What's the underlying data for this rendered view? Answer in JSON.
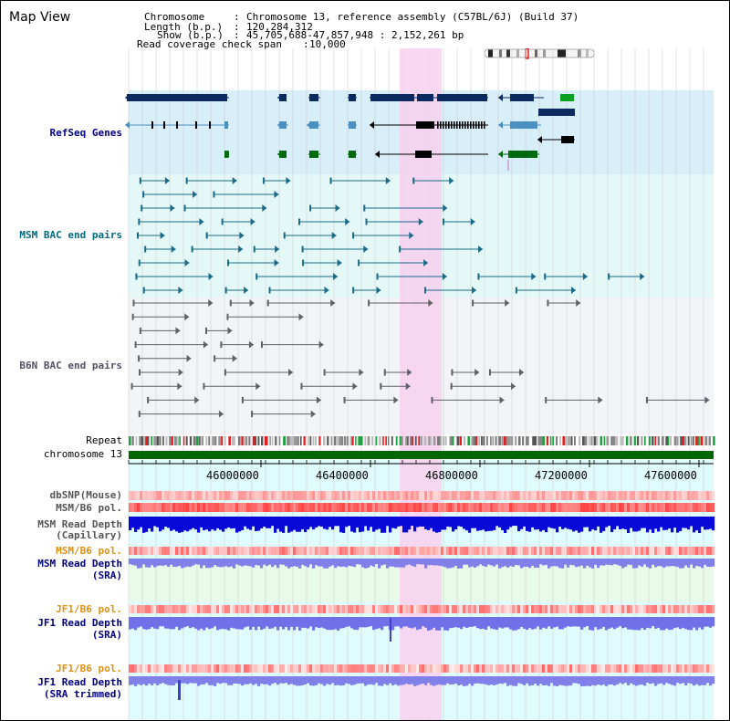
{
  "page": {
    "title": "Map View"
  },
  "header": {
    "chromosome_label": "Chromosome",
    "chromosome_value": "Chromosome 13, reference assembly (C57BL/6J) (Build 37)",
    "length_label": "Length (b.p.)",
    "length_value": "120,284,312",
    "show_label": "Show (b.p.)",
    "show_value": "45,705,688-47,857,948 : 2,152,261 bp",
    "span_label": "Read coverage check span",
    "span_value": "10,000"
  },
  "tracks": {
    "refseq": "RefSeq Genes",
    "msm_bac": "MSM BAC end pairs",
    "b6n_bac": "B6N BAC end pairs",
    "repeat": "Repeat",
    "chromosome": "chromosome 13",
    "dbsnp": "dbSNP(Mouse)",
    "msm_b6_pol": "MSM/B6 pol.",
    "msm_depth_cap_1": "MSM Read Depth",
    "msm_depth_cap_2": "(Capillary)",
    "msm_b6_pol_2": "MSM/B6 pol.",
    "msm_depth_sra_1": "MSM Read Depth",
    "msm_depth_sra_2": "(SRA)",
    "jf1_b6_pol": "JF1/B6 pol.",
    "jf1_depth_sra_1": "JF1 Read Depth",
    "jf1_depth_sra_2": "(SRA)",
    "jf1_b6_pol_2": "JF1/B6 pol.",
    "jf1_depth_trim_1": "JF1 Read Depth",
    "jf1_depth_trim_2": "(SRA trimmed)"
  },
  "axis": {
    "ticks": [
      "46000000",
      "46400000",
      "46800000",
      "47200000",
      "47600000"
    ],
    "range_bp": [
      45705688,
      47857948
    ]
  },
  "colors": {
    "refseq_label": "#000080",
    "msm_bac_label": "#006a80",
    "b6n_bac_label": "#505060",
    "pol_orange": "#e09010",
    "depth_blue": "#0000c0",
    "highlight": "#f8d8f2",
    "chromosome_bar": "#006600"
  }
}
